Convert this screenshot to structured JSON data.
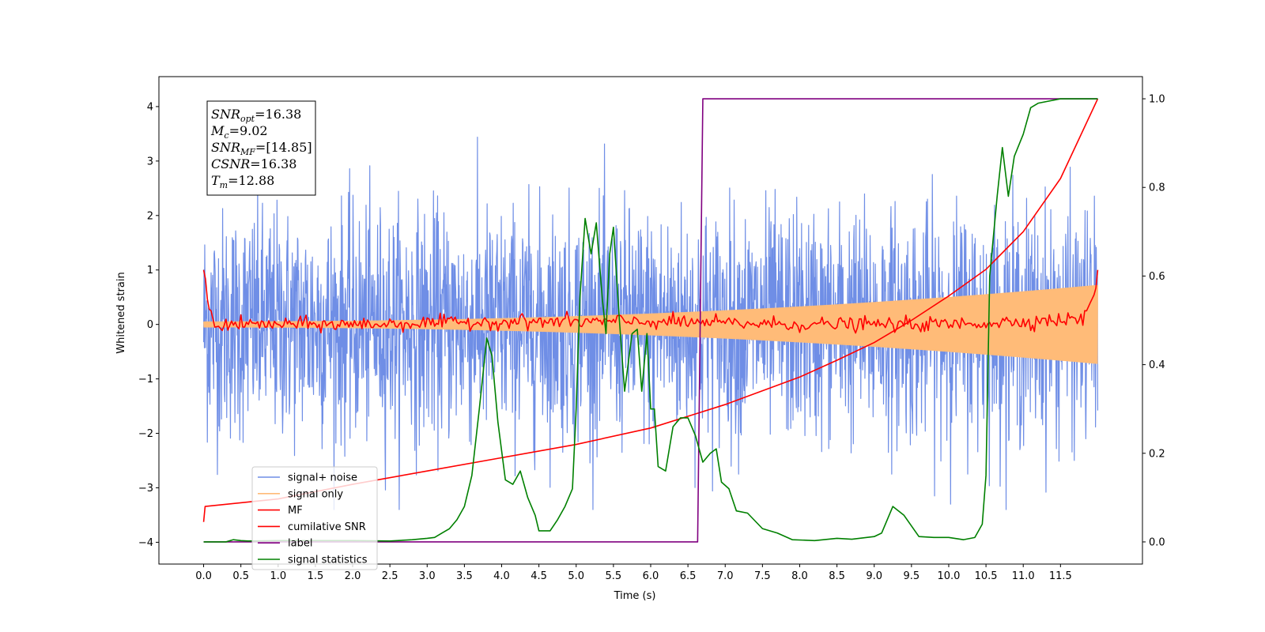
{
  "chart_data": {
    "type": "line",
    "xlabel": "Time (s)",
    "ylabel": "Whitened strain",
    "xlim": [
      -0.6,
      12.6
    ],
    "ylim": [
      -4.4,
      4.55
    ],
    "y2lim": [
      -0.05,
      1.05
    ],
    "x_ticks": [
      "0.0",
      "0.5",
      "1.0",
      "1.5",
      "2.0",
      "2.5",
      "3.0",
      "3.5",
      "4.0",
      "4.5",
      "5.0",
      "5.5",
      "6.0",
      "6.5",
      "7.0",
      "7.5",
      "8.0",
      "8.5",
      "9.0",
      "9.5",
      "10.0",
      "10.5",
      "11.0",
      "11.5"
    ],
    "y_ticks": [
      "−4",
      "−3",
      "−2",
      "−1",
      "0",
      "1",
      "2",
      "3",
      "4"
    ],
    "y2_ticks": [
      "0.0",
      "0.2",
      "0.4",
      "0.6",
      "0.8",
      "1.0"
    ],
    "annotation": [
      {
        "base": "SNR",
        "sub": "opt",
        "rest": "=16.38"
      },
      {
        "base": "M",
        "sub": "c",
        "rest": "=9.02"
      },
      {
        "base": "SNR",
        "sub": "MF",
        "rest": "=[14.85]"
      },
      {
        "base": "CSNR",
        "sub": "",
        "rest": "=16.38"
      },
      {
        "base": "T",
        "sub": "m",
        "rest": "=12.88"
      }
    ],
    "legend_position": "lower-left",
    "series": [
      {
        "name": "signal+ noise",
        "color": "#6f8ee6",
        "axis": "left",
        "kind": "noise",
        "noise_std": 1.05,
        "x_range": [
          0,
          12
        ]
      },
      {
        "name": "signal only",
        "color": "#ffbb78",
        "axis": "left",
        "kind": "chirp",
        "amplitude_start": 0.05,
        "amplitude_end": 0.72,
        "x_range": [
          0,
          12
        ]
      },
      {
        "name": "MF",
        "color": "#ff0000",
        "axis": "left",
        "kind": "mf",
        "points": [
          [
            0.0,
            1.0
          ],
          [
            0.03,
            0.8
          ],
          [
            0.06,
            0.3
          ],
          [
            0.1,
            0.25
          ],
          [
            0.15,
            -0.05
          ],
          [
            0.3,
            0.0
          ],
          [
            2.0,
            0.0
          ],
          [
            4.0,
            0.05
          ],
          [
            6.0,
            0.05
          ],
          [
            8.0,
            0.0
          ],
          [
            10.0,
            0.0
          ],
          [
            11.8,
            0.1
          ],
          [
            11.9,
            0.4
          ],
          [
            11.97,
            0.6
          ],
          [
            12.0,
            1.0
          ]
        ]
      },
      {
        "name": "cumilative SNR",
        "color": "#ff0000",
        "axis": "right",
        "points": [
          [
            0.0,
            0.045
          ],
          [
            0.02,
            0.08
          ],
          [
            1,
            0.097
          ],
          [
            2,
            0.13
          ],
          [
            3,
            0.16
          ],
          [
            4,
            0.19
          ],
          [
            5,
            0.22
          ],
          [
            6,
            0.257
          ],
          [
            7,
            0.31
          ],
          [
            8,
            0.372
          ],
          [
            8.5,
            0.41
          ],
          [
            9,
            0.45
          ],
          [
            9.5,
            0.5
          ],
          [
            10,
            0.555
          ],
          [
            10.5,
            0.615
          ],
          [
            11,
            0.7
          ],
          [
            11.5,
            0.82
          ],
          [
            12,
            1.0
          ]
        ]
      },
      {
        "name": "label",
        "color": "#800080",
        "axis": "right",
        "points": [
          [
            0,
            0
          ],
          [
            6.63,
            0
          ],
          [
            6.7,
            1.0
          ],
          [
            12,
            1.0
          ]
        ]
      },
      {
        "name": "signal statistics",
        "color": "#008000",
        "axis": "right",
        "points": [
          [
            0,
            0
          ],
          [
            0.3,
            0.0
          ],
          [
            0.4,
            0.005
          ],
          [
            0.5,
            0.003
          ],
          [
            0.6,
            0.002
          ],
          [
            1.0,
            0.003
          ],
          [
            1.5,
            0.003
          ],
          [
            2.0,
            0.003
          ],
          [
            2.5,
            0.002
          ],
          [
            2.8,
            0.005
          ],
          [
            3.0,
            0.008
          ],
          [
            3.1,
            0.01
          ],
          [
            3.2,
            0.02
          ],
          [
            3.3,
            0.03
          ],
          [
            3.4,
            0.05
          ],
          [
            3.5,
            0.08
          ],
          [
            3.6,
            0.15
          ],
          [
            3.7,
            0.3
          ],
          [
            3.8,
            0.46
          ],
          [
            3.87,
            0.42
          ],
          [
            3.95,
            0.27
          ],
          [
            4.05,
            0.14
          ],
          [
            4.15,
            0.13
          ],
          [
            4.25,
            0.16
          ],
          [
            4.35,
            0.1
          ],
          [
            4.45,
            0.06
          ],
          [
            4.5,
            0.025
          ],
          [
            4.65,
            0.025
          ],
          [
            4.75,
            0.05
          ],
          [
            4.85,
            0.08
          ],
          [
            4.95,
            0.12
          ],
          [
            5.0,
            0.3
          ],
          [
            5.05,
            0.55
          ],
          [
            5.12,
            0.73
          ],
          [
            5.2,
            0.65
          ],
          [
            5.27,
            0.72
          ],
          [
            5.35,
            0.55
          ],
          [
            5.4,
            0.47
          ],
          [
            5.45,
            0.65
          ],
          [
            5.5,
            0.71
          ],
          [
            5.58,
            0.5
          ],
          [
            5.65,
            0.34
          ],
          [
            5.75,
            0.47
          ],
          [
            5.82,
            0.48
          ],
          [
            5.88,
            0.34
          ],
          [
            5.95,
            0.47
          ],
          [
            6.0,
            0.3
          ],
          [
            6.05,
            0.3
          ],
          [
            6.1,
            0.17
          ],
          [
            6.2,
            0.16
          ],
          [
            6.3,
            0.26
          ],
          [
            6.4,
            0.28
          ],
          [
            6.5,
            0.28
          ],
          [
            6.6,
            0.24
          ],
          [
            6.7,
            0.18
          ],
          [
            6.8,
            0.2
          ],
          [
            6.88,
            0.21
          ],
          [
            6.95,
            0.135
          ],
          [
            7.05,
            0.12
          ],
          [
            7.15,
            0.07
          ],
          [
            7.3,
            0.065
          ],
          [
            7.5,
            0.03
          ],
          [
            7.7,
            0.02
          ],
          [
            7.9,
            0.005
          ],
          [
            8.2,
            0.003
          ],
          [
            8.5,
            0.008
          ],
          [
            8.7,
            0.006
          ],
          [
            9.0,
            0.012
          ],
          [
            9.1,
            0.02
          ],
          [
            9.25,
            0.08
          ],
          [
            9.4,
            0.06
          ],
          [
            9.6,
            0.012
          ],
          [
            9.8,
            0.01
          ],
          [
            10.0,
            0.01
          ],
          [
            10.2,
            0.005
          ],
          [
            10.35,
            0.01
          ],
          [
            10.45,
            0.04
          ],
          [
            10.5,
            0.15
          ],
          [
            10.55,
            0.6
          ],
          [
            10.65,
            0.78
          ],
          [
            10.72,
            0.89
          ],
          [
            10.8,
            0.78
          ],
          [
            10.88,
            0.87
          ],
          [
            11.0,
            0.92
          ],
          [
            11.1,
            0.98
          ],
          [
            11.2,
            0.99
          ],
          [
            11.5,
            1.0
          ],
          [
            12.0,
            1.0
          ]
        ]
      }
    ]
  }
}
